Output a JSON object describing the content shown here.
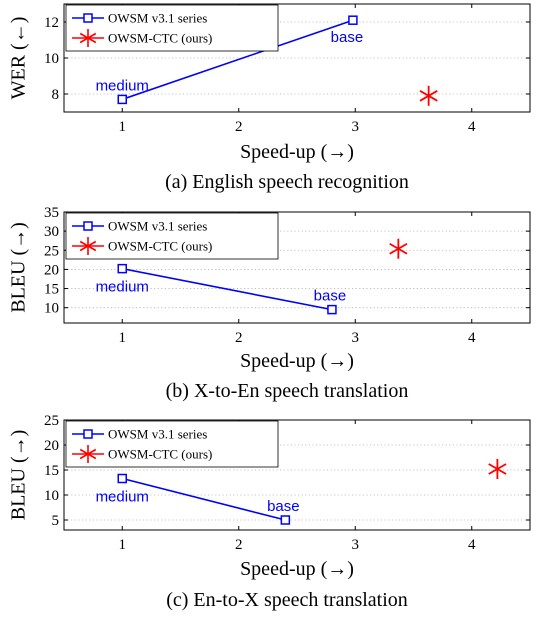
{
  "colors": {
    "owsm": "#0000ff",
    "ctc": "#ff0000",
    "axis": "#000000",
    "grid": "#b3b3b3"
  },
  "chart_data": [
    {
      "type": "scatter",
      "caption": "(a) English speech recognition",
      "xlabel": "Speed-up (→)",
      "ylabel": "WER (←)",
      "xlim": [
        0.5,
        4.5
      ],
      "ylim": [
        7,
        13
      ],
      "xticks": [
        1,
        2,
        3,
        4
      ],
      "yticks": [
        8,
        10,
        12
      ],
      "grid": "horizontal-dotted",
      "legend_position": "top-left",
      "series": [
        {
          "name": "OWSM v3.1 series",
          "marker": "square",
          "line": true,
          "points": [
            {
              "x": 1,
              "y": 7.7,
              "label": "medium"
            },
            {
              "x": 2.98,
              "y": 12.1,
              "label": "base"
            }
          ]
        },
        {
          "name": "OWSM-CTC (ours)",
          "marker": "asterisk",
          "line": false,
          "points": [
            {
              "x": 3.63,
              "y": 7.9
            }
          ]
        }
      ]
    },
    {
      "type": "scatter",
      "caption": "(b) X-to-En speech translation",
      "xlabel": "Speed-up (→)",
      "ylabel": "BLEU (→)",
      "xlim": [
        0.5,
        4.5
      ],
      "ylim": [
        6,
        35
      ],
      "xticks": [
        1,
        2,
        3,
        4
      ],
      "yticks": [
        10,
        15,
        20,
        25,
        30,
        35
      ],
      "grid": "horizontal-dotted",
      "legend_position": "top-left",
      "series": [
        {
          "name": "OWSM v3.1 series",
          "marker": "square",
          "line": true,
          "points": [
            {
              "x": 1,
              "y": 20.2,
              "label": "medium"
            },
            {
              "x": 2.8,
              "y": 9.5,
              "label": "base"
            }
          ]
        },
        {
          "name": "OWSM-CTC (ours)",
          "marker": "asterisk",
          "line": false,
          "points": [
            {
              "x": 3.37,
              "y": 25.4
            }
          ]
        }
      ]
    },
    {
      "type": "scatter",
      "caption": "(c) En-to-X speech translation",
      "xlabel": "Speed-up (→)",
      "ylabel": "BLEU (→)",
      "xlim": [
        0.5,
        4.5
      ],
      "ylim": [
        3,
        25
      ],
      "xticks": [
        1,
        2,
        3,
        4
      ],
      "yticks": [
        5,
        10,
        15,
        20,
        25
      ],
      "grid": "horizontal-dotted",
      "legend_position": "top-left",
      "series": [
        {
          "name": "OWSM v3.1 series",
          "marker": "square",
          "line": true,
          "points": [
            {
              "x": 1,
              "y": 13.3,
              "label": "medium"
            },
            {
              "x": 2.4,
              "y": 5.0,
              "label": "base"
            }
          ]
        },
        {
          "name": "OWSM-CTC (ours)",
          "marker": "asterisk",
          "line": false,
          "points": [
            {
              "x": 4.22,
              "y": 15.2
            }
          ]
        }
      ]
    }
  ]
}
